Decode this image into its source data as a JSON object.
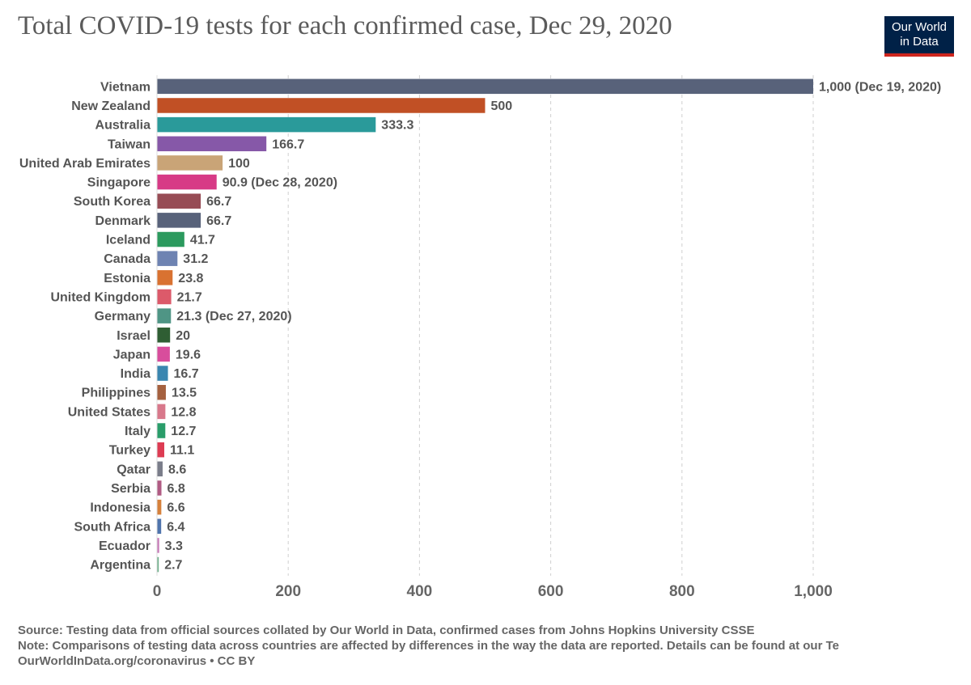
{
  "header": {
    "title": "Total COVID-19 tests for each confirmed case, Dec 29, 2020",
    "logo_line1": "Our World",
    "logo_line2": "in Data"
  },
  "footer": {
    "source": "Source: Testing data from official sources collated by Our World in Data, confirmed cases from Johns Hopkins University CSSE",
    "note": "Note: Comparisons of testing data across countries are affected by differences in the way the data are reported. Details can be found at our Te",
    "credit": "OurWorldInData.org/coronavirus • CC BY"
  },
  "chart_data": {
    "type": "bar",
    "orientation": "horizontal",
    "xlim": [
      0,
      1000
    ],
    "xticks": [
      0,
      200,
      400,
      600,
      800,
      1000
    ],
    "xtick_labels": [
      "0",
      "200",
      "400",
      "600",
      "800",
      "1,000"
    ],
    "grid": "vertical dashed",
    "categories": [
      "Vietnam",
      "New Zealand",
      "Australia",
      "Taiwan",
      "United Arab Emirates",
      "Singapore",
      "South Korea",
      "Denmark",
      "Iceland",
      "Canada",
      "Estonia",
      "United Kingdom",
      "Germany",
      "Israel",
      "Japan",
      "India",
      "Philippines",
      "United States",
      "Italy",
      "Turkey",
      "Qatar",
      "Serbia",
      "Indonesia",
      "South Africa",
      "Ecuador",
      "Argentina"
    ],
    "values": [
      1000,
      500,
      333.3,
      166.7,
      100,
      90.9,
      66.7,
      66.7,
      41.7,
      31.2,
      23.8,
      21.7,
      21.3,
      20,
      19.6,
      16.7,
      13.5,
      12.8,
      12.7,
      11.1,
      8.6,
      6.8,
      6.6,
      6.4,
      3.3,
      2.7
    ],
    "value_labels": [
      "1,000 (Dec 19, 2020)",
      "500",
      "333.3",
      "166.7",
      "100",
      "90.9 (Dec 28, 2020)",
      "66.7",
      "66.7",
      "41.7",
      "31.2",
      "23.8",
      "21.7",
      "21.3 (Dec 27, 2020)",
      "20",
      "19.6",
      "16.7",
      "13.5",
      "12.8",
      "12.7",
      "11.1",
      "8.6",
      "6.8",
      "6.6",
      "6.4",
      "3.3",
      "2.7"
    ],
    "colors": [
      "#58627a",
      "#c15025",
      "#2a9a9a",
      "#8658a8",
      "#c9a477",
      "#d73a86",
      "#974c55",
      "#58627a",
      "#2c9a5e",
      "#6e83b2",
      "#d97231",
      "#dc5a6a",
      "#4f9585",
      "#2f5e33",
      "#d84d9c",
      "#3a86b0",
      "#a5613f",
      "#d8788b",
      "#2a9d6a",
      "#dd3c53",
      "#7a7d8a",
      "#b05b83",
      "#d6813b",
      "#4f74ac",
      "#c77ab8",
      "#6fb08b"
    ]
  }
}
